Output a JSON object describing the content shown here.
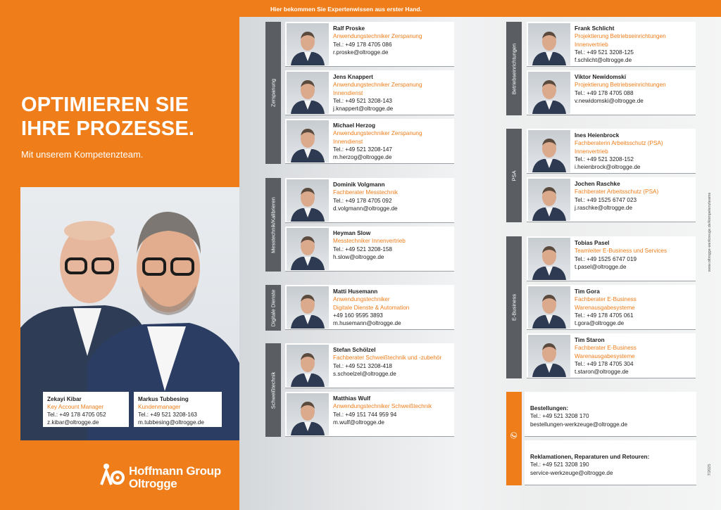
{
  "left": {
    "headline_1": "OPTIMIEREN SIE",
    "headline_2": "IHRE PROZESSE.",
    "subline": "Mit unserem Kompetenzteam.",
    "contacts": [
      {
        "name": "Zekayi Kibar",
        "role": "Key Account Manager",
        "phone": "Tel.: +49 178 4705 052",
        "email": "z.kibar@oltrogge.de"
      },
      {
        "name": "Markus Tubbesing",
        "role": "Kundenmanager",
        "phone": "Tel.: +49 521 3208-163",
        "email": "m.tubbesing@oltrogge.de"
      }
    ],
    "logo_line1": "Hoffmann Group",
    "logo_line2": "Oltrogge"
  },
  "right": {
    "banner": "Hier bekommen Sie Expertenwissen aus erster Hand.",
    "sections": [
      {
        "label": "Zerspanung",
        "people": [
          {
            "name": "Ralf Proske",
            "role": "Anwendungstechniker Zerspanung",
            "phone": "Tel.: +49 178 4705 086",
            "email": "r.proske@oltrogge.de"
          },
          {
            "name": "Jens Knappert",
            "role": "Anwendungstechniker Zerspanung",
            "role2": "Innendienst",
            "phone": "Tel.: +49 521 3208-143",
            "email": "j.knappert@oltrogge.de"
          },
          {
            "name": "Michael Herzog",
            "role": "Anwendungstechniker Zerspanung",
            "role2": "Innendienst",
            "phone": "Tel.: +49 521 3208-147",
            "email": "m.herzog@oltrogge.de"
          }
        ]
      },
      {
        "label": "Messtechnik/Kalibrieren",
        "people": [
          {
            "name": "Dominik Volgmann",
            "role": "Fachberater Messtechnik",
            "phone": "Tel.: +49 178 4705 092",
            "email": "d.volgmann@oltrogge.de"
          },
          {
            "name": "Heyman Slow",
            "role": "Messtechniker Innenvertrieb",
            "phone": "Tel.: +49 521 3208-158",
            "email": "h.slow@oltrogge.de"
          }
        ]
      },
      {
        "label": "Digitale Dienste",
        "people": [
          {
            "name": "Matti Husemann",
            "role": "Anwendungstechniker",
            "role2": "Digitale Dienste & Automation",
            "phone": "+49 160 9595 3893",
            "email": "m.husemann@oltrogge.de"
          }
        ]
      },
      {
        "label": "Schweißtechnik",
        "people": [
          {
            "name": "Stefan Schölzel",
            "role": "Fachberater Schweißtechnik und -zubehör",
            "phone": "Tel.: +49 521 3208-418",
            "email": "s.schoelzel@oltrogge.de"
          },
          {
            "name": "Matthias Wulf",
            "role": "Anwendungstechniker Schweißtechnik",
            "phone": "Tel.: +49 151 744 959 94",
            "email": "m.wulf@oltrogge.de"
          }
        ]
      },
      {
        "label": "Betriebseinrichtungen",
        "people": [
          {
            "name": "Frank Schlicht",
            "role": "Projektierung Betriebseinrichtungen",
            "role2": "Innenvertrieb",
            "phone": "Tel.: +49 521 3208-125",
            "email": "f.schlicht@oltrogge.de"
          },
          {
            "name": "Viktor Newidomski",
            "role": "Projektierung Betriebseinrichtungen",
            "phone": "Tel.: +49 178 4705 088",
            "email": "v.newidomski@oltrogge.de"
          }
        ]
      },
      {
        "label": "PSA",
        "people": [
          {
            "name": "Ines Heienbrock",
            "role": "Fachberaterin Arbeitsschutz (PSA)",
            "role2": "Innenvertrieb",
            "phone": "Tel.: +49 521 3208-152",
            "email": "i.heienbrock@oltrogge.de"
          },
          {
            "name": "Jochen Raschke",
            "role": "Fachberater Arbeitsschutz (PSA)",
            "phone": "Tel.: +49 1525 6747 023",
            "email": "j.raschke@oltrogge.de"
          }
        ]
      },
      {
        "label": "E-Business",
        "people": [
          {
            "name": "Tobias Pasel",
            "role": "Teamleiter E-Business und Services",
            "phone": "Tel.: +49 1525 6747 019",
            "email": "t.pasel@oltrogge.de"
          },
          {
            "name": "Tim Gora",
            "role": "Fachberater E-Business",
            "role2": "Warenausgabesysteme",
            "phone": "Tel.: +49 178 4705 061",
            "email": "t.gora@oltrogge.de"
          },
          {
            "name": "Tim Staron",
            "role": "Fachberater E-Business",
            "role2": "Warenausgabesysteme",
            "phone": "Tel.: +49 178 4705 304",
            "email": "t.staron@oltrogge.de"
          }
        ]
      }
    ],
    "orders": {
      "title": "Bestellungen:",
      "phone": "Tel.: +49 521 3208 170",
      "email": "bestellungen-werkzeuge@oltrogge.de"
    },
    "complaints": {
      "title": "Reklamationen, Reparaturen und Retouren:",
      "phone": "Tel.: +49 521 3208 190",
      "email": "service-werkzeuge@oltrogge.de"
    },
    "side_url": "www.oltrogge-werkzeuge.de/kompetenzteams",
    "version": "7/2025"
  },
  "colors": {
    "brand_orange": "#ef7d1a",
    "bar_gray": "#5a5e63"
  }
}
